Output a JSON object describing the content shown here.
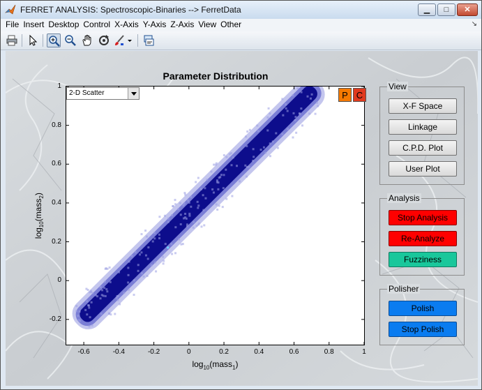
{
  "window": {
    "title": "FERRET ANALYSIS: Spectroscopic-Binaries --> FerretData",
    "controls": {
      "minimize": "▁",
      "maximize": "□",
      "close": "✕"
    }
  },
  "menu": [
    "File",
    "Insert",
    "Desktop",
    "Control",
    "X-Axis",
    "Y-Axis",
    "Z-Axis",
    "View",
    "Other"
  ],
  "menu_corner": "↘",
  "toolbar": [
    "print-icon",
    "pointer-icon",
    "zoom-in-icon",
    "zoom-out-icon",
    "pan-hand-icon",
    "rotate-icon",
    "data-brush-icon",
    "dropdown-arrow-icon",
    "link-plot-icon"
  ],
  "plot": {
    "title": "Parameter Distribution",
    "plot_type_select": "2-D Scatter",
    "xlabel_main": "log",
    "xlabel_sub1": "10",
    "xlabel_mid": "(mass",
    "xlabel_sub2": "1",
    "xlabel_end": ")",
    "ylabel_main": "log",
    "ylabel_sub1": "10",
    "ylabel_mid": "(mass",
    "ylabel_sub2": "2",
    "ylabel_end": ")",
    "p_button": "P",
    "c_button": "C",
    "p_color": "#f57900",
    "c_color": "#e03a1e"
  },
  "chart_data": {
    "type": "scatter",
    "title": "Parameter Distribution",
    "xlabel": "log10(mass1)",
    "ylabel": "log10(mass2)",
    "xlim": [
      -0.7,
      1
    ],
    "ylim": [
      -0.33,
      1
    ],
    "x_ticks": [
      "-0.6",
      "-0.4",
      "-0.2",
      "0",
      "0.2",
      "0.4",
      "0.6",
      "0.8",
      "1"
    ],
    "y_ticks": [
      "-0.2",
      "0",
      "0.2",
      "0.4",
      "0.6",
      "0.8",
      "1"
    ],
    "x_tick_values": [
      -0.6,
      -0.4,
      -0.2,
      0,
      0.2,
      0.4,
      0.6,
      0.8,
      1
    ],
    "y_tick_values": [
      -0.2,
      0,
      0.2,
      0.4,
      0.6,
      0.8,
      1
    ],
    "band": {
      "x_start": -0.62,
      "y_start": -0.21,
      "x_end": 0.73,
      "y_end": 1.0
    },
    "core_color": "#0d0d8c",
    "halo_color": "#9da0e3",
    "highlight_point": {
      "x": -0.12,
      "y": 0.17,
      "color": "#6fd3ff"
    },
    "grid": false
  },
  "panels": {
    "view": {
      "title": "View",
      "buttons": [
        "X-F Space",
        "Linkage",
        "C.P.D. Plot",
        "User Plot"
      ]
    },
    "analysis": {
      "title": "Analysis",
      "buttons": [
        "Stop Analysis",
        "Re-Analyze",
        "Fuzziness"
      ]
    },
    "polisher": {
      "title": "Polisher",
      "buttons": [
        "Polish",
        "Stop Polish"
      ]
    }
  }
}
